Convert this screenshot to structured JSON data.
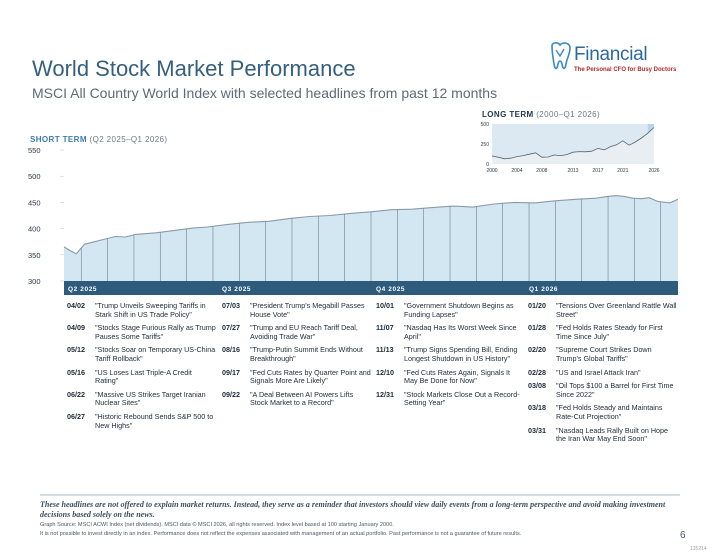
{
  "header": {
    "title": "World Stock Market Performance",
    "subtitle": "MSCI All Country World Index with selected headlines from past 12 months"
  },
  "logo": {
    "word": "Financial",
    "tagline": "The Personal CFO for Busy Doctors"
  },
  "colors": {
    "accent": "#355f7f",
    "line": "#8a9aa8",
    "area": "#d3e7f3",
    "band": "#2e5a7c",
    "red": "#b02a2a"
  },
  "chart_data": [
    {
      "type": "area",
      "title": "SHORT TERM",
      "subtitle": "(Q2 2025–Q1 2026)",
      "ylim": [
        300,
        550
      ],
      "yticks": [
        300,
        350,
        400,
        450,
        500,
        550
      ],
      "quarters": [
        "Q2 2025",
        "Q3 2025",
        "Q4 2025",
        "Q1 2026"
      ],
      "grid": false,
      "series": [
        {
          "name": "MSCI ACWI",
          "x": [
            0,
            3,
            6,
            10,
            15,
            20,
            25,
            30,
            35,
            45,
            55,
            63,
            70,
            80,
            90,
            100,
            110,
            120,
            130,
            140,
            150,
            160,
            170,
            180,
            190,
            200,
            210,
            220,
            230,
            240,
            250,
            260,
            265,
            270,
            274,
            278,
            282,
            286,
            290,
            296,
            300
          ],
          "values": [
            365,
            358,
            352,
            370,
            375,
            380,
            385,
            384,
            389,
            392,
            397,
            401,
            403,
            408,
            412,
            414,
            419,
            423,
            425,
            429,
            432,
            436,
            437,
            440,
            443,
            441,
            447,
            450,
            449,
            453,
            456,
            458,
            461,
            463,
            461,
            458,
            457,
            459,
            452,
            449,
            456
          ]
        }
      ],
      "annotations": [
        "04/02",
        "04/09",
        "05/12",
        "05/16",
        "06/22",
        "06/27",
        "07/03",
        "07/27",
        "08/16",
        "09/17",
        "09/22",
        "10/01",
        "11/07",
        "11/13",
        "12/10",
        "12/31",
        "01/20",
        "01/28",
        "02/20",
        "02/28",
        "03/08",
        "03/18",
        "03/31"
      ]
    },
    {
      "type": "area",
      "title": "LONG TERM",
      "subtitle": "(2000–Q1 2026)",
      "ylim": [
        0,
        500
      ],
      "yticks": [
        0,
        250,
        500
      ],
      "xticks": [
        "2000",
        "2004",
        "2008",
        "2013",
        "2017",
        "2021",
        "2026"
      ],
      "series": [
        {
          "name": "MSCI ACWI",
          "x": [
            2000,
            2001,
            2002,
            2003,
            2004,
            2005,
            2006,
            2007,
            2008,
            2009,
            2010,
            2011,
            2012,
            2013,
            2014,
            2015,
            2016,
            2017,
            2018,
            2019,
            2020,
            2021,
            2022,
            2023,
            2024,
            2025,
            2026
          ],
          "values": [
            100,
            85,
            65,
            72,
            92,
            105,
            122,
            140,
            85,
            88,
            112,
            105,
            118,
            148,
            155,
            152,
            160,
            195,
            178,
            215,
            240,
            290,
            235,
            275,
            325,
            385,
            456
          ]
        }
      ]
    }
  ],
  "headlines": {
    "q2": [
      {
        "date": "04/02",
        "text": "\"Trump Unveils Sweeping Tariffs in Stark Shift in US Trade Policy\""
      },
      {
        "date": "04/09",
        "text": "\"Stocks Stage Furious Rally as Trump Pauses Some Tariffs\""
      },
      {
        "date": "05/12",
        "text": "\"Stocks Soar on Temporary US-China Tariff Rollback\""
      },
      {
        "date": "05/16",
        "text": "\"US Loses Last Triple-A Credit Rating\""
      },
      {
        "date": "06/22",
        "text": "\"Massive US Strikes Target Iranian Nuclear Sites\""
      },
      {
        "date": "06/27",
        "text": "\"Historic Rebound Sends S&P 500 to New Highs\""
      }
    ],
    "q3": [
      {
        "date": "07/03",
        "text": "\"President Trump's Megabill Passes House Vote\""
      },
      {
        "date": "07/27",
        "text": "\"Trump and EU Reach Tariff Deal, Avoiding Trade War\""
      },
      {
        "date": "08/16",
        "text": "\"Trump-Putin Summit Ends Without Breakthrough\""
      },
      {
        "date": "09/17",
        "text": "\"Fed Cuts Rates by Quarter Point and Signals More Are Likely\""
      },
      {
        "date": "09/22",
        "text": "\"A Deal Between AI Powers Lifts Stock Market to a Record\""
      }
    ],
    "q4": [
      {
        "date": "10/01",
        "text": "\"Government Shutdown Begins as Funding Lapses\""
      },
      {
        "date": "11/07",
        "text": "\"Nasdaq Has Its Worst Week Since April\""
      },
      {
        "date": "11/13",
        "text": "\"Trump Signs Spending Bill, Ending Longest Shutdown in US History\""
      },
      {
        "date": "12/10",
        "text": "\"Fed Cuts Rates Again, Signals It May Be Done for Now\""
      },
      {
        "date": "12/31",
        "text": "\"Stock Markets Close Out a Record-Setting Year\""
      }
    ],
    "q1": [
      {
        "date": "01/20",
        "text": "\"Tensions Over Greenland Rattle Wall Street\""
      },
      {
        "date": "01/28",
        "text": "\"Fed Holds Rates Steady for First Time Since July\""
      },
      {
        "date": "02/20",
        "text": "\"Supreme Court Strikes Down Trump's Global Tariffs\""
      },
      {
        "date": "02/28",
        "text": "\"US and Israel Attack Iran\""
      },
      {
        "date": "03/08",
        "text": "\"Oil Tops $100 a Barrel for First Time Since 2022\""
      },
      {
        "date": "03/18",
        "text": "\"Fed Holds Steady and Maintains Rate-Cut Projection\""
      },
      {
        "date": "03/31",
        "text": "\"Nasdaq Leads Rally Built on Hope the Iran War May End Soon\""
      }
    ]
  },
  "footer": {
    "disclaimer": "These headlines are not offered to explain market returns. Instead, they serve as a reminder that investors should view daily events from a long-term perspective and avoid making investment decisions based solely on the news.",
    "source": "Graph Source: MSCI ACWI Index (net dividends). MSCI data © MSCI 2026, all rights reserved. Index level based at 100 starting January 2000.",
    "performance": "It is not possible to invest directly in an index. Performance does not reflect the expenses associated with management of an actual portfolio. Past performance is not a guarantee of future results.",
    "page_number": "6",
    "code": "135214"
  }
}
